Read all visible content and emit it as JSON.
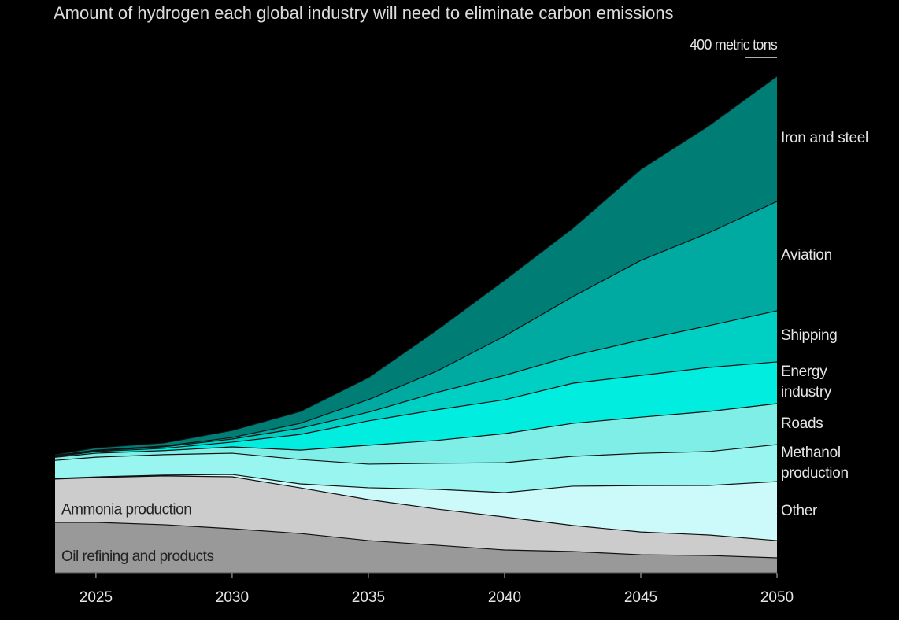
{
  "chart_data": {
    "type": "stacked_area",
    "title": "Amount of hydrogen each global industry will need to eliminate carbon emissions",
    "x": [
      2023.5,
      2025,
      2027.5,
      2030,
      2032.5,
      2035,
      2037.5,
      2040,
      2042.5,
      2045,
      2047.5,
      2050
    ],
    "xlim": [
      2023.5,
      2050
    ],
    "xticks": [
      2025,
      2030,
      2035,
      2040,
      2045,
      2050
    ],
    "ylim": [
      0,
      400
    ],
    "yticks": [
      {
        "value": 400,
        "label": "400 metric tons"
      }
    ],
    "series": [
      {
        "name": "Oil refining and products",
        "color": "#999999",
        "values": [
          39.1,
          39.1,
          37.3,
          34.2,
          30.5,
          25.0,
          21.4,
          17.7,
          16.5,
          14.0,
          13.4,
          11.6
        ]
      },
      {
        "name": "Ammonia production",
        "color": "#cccccc",
        "values": [
          33.6,
          34.8,
          37.9,
          40.3,
          35.4,
          31.8,
          28.1,
          25.6,
          20.2,
          17.7,
          15.9,
          13.4
        ]
      },
      {
        "name": "Other",
        "color": "#ccfafa",
        "values": [
          0.5,
          0.5,
          0.6,
          1.8,
          3.1,
          9.2,
          15.3,
          18.9,
          30.5,
          36.0,
          38.5,
          45.8
        ]
      },
      {
        "name": "Methanol production",
        "color": "#99f5f0",
        "values": [
          14.0,
          15.3,
          15.9,
          16.5,
          18.9,
          18.3,
          20.2,
          23.2,
          23.2,
          25.0,
          26.3,
          28.7
        ]
      },
      {
        "name": "Roads",
        "color": "#7feee6",
        "values": [
          2.4,
          3.1,
          3.1,
          4.9,
          7.3,
          14.7,
          17.7,
          22.6,
          25.6,
          28.1,
          31.1,
          31.8
        ]
      },
      {
        "name": "Energy industry",
        "color": "#00ede0",
        "values": [
          0.6,
          1.2,
          1.8,
          3.7,
          12.2,
          18.9,
          23.8,
          26.3,
          31.1,
          32.4,
          34.2,
          32.4
        ]
      },
      {
        "name": "Shipping",
        "color": "#00cfc3",
        "values": [
          0.6,
          0.6,
          1.2,
          2.4,
          4.9,
          6.7,
          13.4,
          18.9,
          21.4,
          27.5,
          32.4,
          39.7
        ]
      },
      {
        "name": "Aviation",
        "color": "#00aaa0",
        "values": [
          0.3,
          0.6,
          0.6,
          1.2,
          3.7,
          9.8,
          16.5,
          30.5,
          45.8,
          61.7,
          72.1,
          84.9
        ]
      },
      {
        "name": "Iron and steel",
        "color": "#007d75",
        "values": [
          0.6,
          1.8,
          2.4,
          5.5,
          9.2,
          17.1,
          31.8,
          43.4,
          53.1,
          70.8,
          83.1,
          97.1
        ]
      }
    ]
  }
}
